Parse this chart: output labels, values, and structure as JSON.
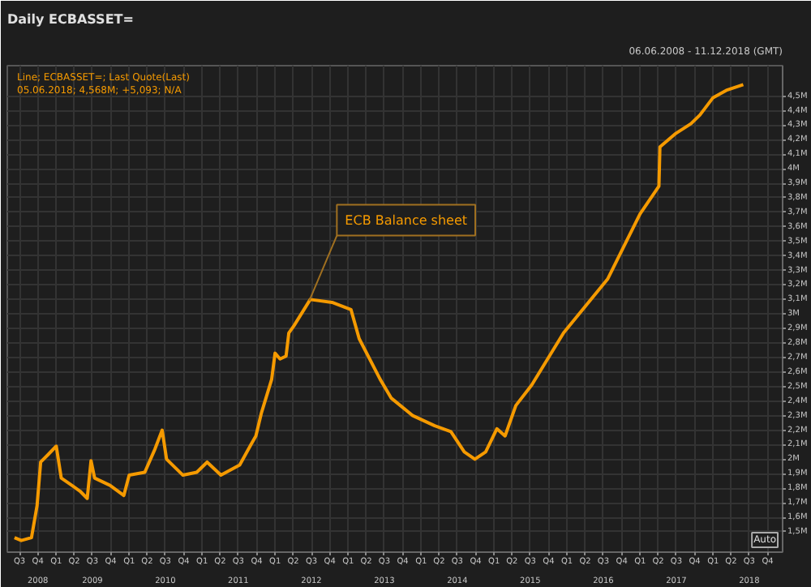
{
  "chart_data": {
    "type": "line",
    "title": "Daily ECBASSET=",
    "subtitle": "Line; ECBASSET=; Last Quote(Last)",
    "annotations": [
      "06.06.2008 - 11.12.2018 (GMT)",
      "05.06.2018; 4,568M; +5,093; N/A",
      {
        "text": "ECB Balance sheet",
        "x": "2012-06-20",
        "y": 3.09
      },
      "Auto"
    ],
    "x": [
      "2008-06-06",
      "2008-07-10",
      "2008-08-30",
      "2008-09-27",
      "2008-10-15",
      "2008-11-20",
      "2009-01-01",
      "2009-01-26",
      "2009-03-20",
      "2009-04-30",
      "2009-06-05",
      "2009-06-24",
      "2009-07-12",
      "2009-09-27",
      "2009-12-05",
      "2010-01-01",
      "2010-03-20",
      "2010-05-10",
      "2010-06-15",
      "2010-07-07",
      "2010-09-27",
      "2010-12-05",
      "2011-01-26",
      "2011-04-05",
      "2011-07-08",
      "2011-09-02",
      "2011-09-27",
      "2011-10-25",
      "2011-12-15",
      "2012-01-01",
      "2012-01-26",
      "2012-02-25",
      "2012-03-10",
      "2012-04-05",
      "2012-06-25",
      "2012-10-12",
      "2013-01-15",
      "2013-02-25",
      "2013-06-10",
      "2013-08-05",
      "2013-11-20",
      "2014-03-10",
      "2014-05-30",
      "2014-08-05",
      "2014-09-27",
      "2014-11-20",
      "2015-01-15",
      "2015-02-25",
      "2015-04-20",
      "2015-07-08",
      "2015-12-15",
      "2016-07-22",
      "2017-01-01",
      "2017-04-05",
      "2017-04-10",
      "2017-06-25",
      "2017-09-12",
      "2017-10-27",
      "2018-01-01",
      "2018-03-08",
      "2018-06-01"
    ],
    "series": [
      {
        "color": "#f59a00",
        "values": [
          1.46,
          1.44,
          1.46,
          1.68,
          1.98,
          2.03,
          2.09,
          1.87,
          1.82,
          1.78,
          1.73,
          1.99,
          1.87,
          1.82,
          1.75,
          1.89,
          1.91,
          2.07,
          2.2,
          2.0,
          1.89,
          1.91,
          1.98,
          1.89,
          1.96,
          2.1,
          2.16,
          2.32,
          2.55,
          2.73,
          2.69,
          2.71,
          2.87,
          2.92,
          3.1,
          3.08,
          3.03,
          2.83,
          2.55,
          2.42,
          2.3,
          2.23,
          2.19,
          2.05,
          2.0,
          2.05,
          2.21,
          2.16,
          2.37,
          2.51,
          2.87,
          3.24,
          3.69,
          3.88,
          4.15,
          4.24,
          4.31,
          4.37,
          4.49,
          4.54,
          4.58
        ]
      }
    ],
    "xlim": [
      "2008-05-01",
      "2018-12-15"
    ],
    "xticks": [
      {
        "value": "2008-07-01",
        "label": "Q3"
      },
      {
        "value": "2008-10-01",
        "label": "Q4"
      },
      {
        "value": "2009-01-01",
        "label": "Q1"
      },
      {
        "value": "2009-04-01",
        "label": "Q2"
      },
      {
        "value": "2009-07-01",
        "label": "Q3"
      },
      {
        "value": "2009-10-01",
        "label": "Q4"
      },
      {
        "value": "2010-01-01",
        "label": "Q1"
      },
      {
        "value": "2010-04-01",
        "label": "Q2"
      },
      {
        "value": "2010-07-01",
        "label": "Q3"
      },
      {
        "value": "2010-10-01",
        "label": "Q4"
      },
      {
        "value": "2011-01-01",
        "label": "Q1"
      },
      {
        "value": "2011-04-01",
        "label": "Q2"
      },
      {
        "value": "2011-07-01",
        "label": "Q3"
      },
      {
        "value": "2011-10-01",
        "label": "Q4"
      },
      {
        "value": "2012-01-01",
        "label": "Q1"
      },
      {
        "value": "2012-04-01",
        "label": "Q2"
      },
      {
        "value": "2012-07-01",
        "label": "Q3"
      },
      {
        "value": "2012-10-01",
        "label": "Q4"
      },
      {
        "value": "2013-01-01",
        "label": "Q1"
      },
      {
        "value": "2013-04-01",
        "label": "Q2"
      },
      {
        "value": "2013-07-01",
        "label": "Q3"
      },
      {
        "value": "2013-10-01",
        "label": "Q4"
      },
      {
        "value": "2014-01-01",
        "label": "Q1"
      },
      {
        "value": "2014-04-01",
        "label": "Q2"
      },
      {
        "value": "2014-07-01",
        "label": "Q3"
      },
      {
        "value": "2014-10-01",
        "label": "Q4"
      },
      {
        "value": "2015-01-01",
        "label": "Q1"
      },
      {
        "value": "2015-04-01",
        "label": "Q2"
      },
      {
        "value": "2015-07-01",
        "label": "Q3"
      },
      {
        "value": "2015-10-01",
        "label": "Q4"
      },
      {
        "value": "2016-01-01",
        "label": "Q1"
      },
      {
        "value": "2016-04-01",
        "label": "Q2"
      },
      {
        "value": "2016-07-01",
        "label": "Q3"
      },
      {
        "value": "2016-10-01",
        "label": "Q4"
      },
      {
        "value": "2017-01-01",
        "label": "Q1"
      },
      {
        "value": "2017-04-01",
        "label": "Q2"
      },
      {
        "value": "2017-07-01",
        "label": "Q3"
      },
      {
        "value": "2017-10-01",
        "label": "Q4"
      },
      {
        "value": "2018-01-01",
        "label": "Q1"
      },
      {
        "value": "2018-04-01",
        "label": "Q2"
      },
      {
        "value": "2018-07-01",
        "label": "Q3"
      },
      {
        "value": "2018-10-01",
        "label": "Q4"
      }
    ],
    "x2lim": [
      "2008-05-01",
      "2018-12-15"
    ],
    "x2ticks": [
      {
        "value": "2008-10-01",
        "label": "2008"
      },
      {
        "value": "2009-07-01",
        "label": "2009"
      },
      {
        "value": "2010-07-01",
        "label": "2010"
      },
      {
        "value": "2011-07-01",
        "label": "2011"
      },
      {
        "value": "2012-07-01",
        "label": "2012"
      },
      {
        "value": "2013-07-01",
        "label": "2013"
      },
      {
        "value": "2014-07-01",
        "label": "2014"
      },
      {
        "value": "2015-07-01",
        "label": "2015"
      },
      {
        "value": "2016-07-01",
        "label": "2016"
      },
      {
        "value": "2017-07-01",
        "label": "2017"
      },
      {
        "value": "2018-07-01",
        "label": "2018"
      }
    ],
    "ylim": [
      1.36,
      4.71
    ],
    "yticks": [
      {
        "value": 1.5,
        "label": "1,5M"
      },
      {
        "value": 1.6,
        "label": "1,6M"
      },
      {
        "value": 1.7,
        "label": "1,7M"
      },
      {
        "value": 1.8,
        "label": "1,8M"
      },
      {
        "value": 1.9,
        "label": "1,9M"
      },
      {
        "value": 2.0,
        "label": "2M"
      },
      {
        "value": 2.1,
        "label": "2,1M"
      },
      {
        "value": 2.2,
        "label": "2,2M"
      },
      {
        "value": 2.3,
        "label": "2,3M"
      },
      {
        "value": 2.4,
        "label": "2,4M"
      },
      {
        "value": 2.5,
        "label": "2,5M"
      },
      {
        "value": 2.6,
        "label": "2,6M"
      },
      {
        "value": 2.7,
        "label": "2,7M"
      },
      {
        "value": 2.8,
        "label": "2,8M"
      },
      {
        "value": 2.9,
        "label": "2,9M"
      },
      {
        "value": 3.0,
        "label": "3M"
      },
      {
        "value": 3.1,
        "label": "3,1M"
      },
      {
        "value": 3.2,
        "label": "3,2M"
      },
      {
        "value": 3.3,
        "label": "3,3M"
      },
      {
        "value": 3.4,
        "label": "3,4M"
      },
      {
        "value": 3.5,
        "label": "3,5M"
      },
      {
        "value": 3.6,
        "label": "3,6M"
      },
      {
        "value": 3.7,
        "label": "3,7M"
      },
      {
        "value": 3.8,
        "label": "3,8M"
      },
      {
        "value": 3.9,
        "label": "3,9M"
      },
      {
        "value": 4.0,
        "label": "4M"
      },
      {
        "value": 4.1,
        "label": "4,1M"
      },
      {
        "value": 4.2,
        "label": "4,2M"
      },
      {
        "value": 4.3,
        "label": "4,3M"
      },
      {
        "value": 4.4,
        "label": "4,4M"
      },
      {
        "value": 4.5,
        "label": "4,5M"
      }
    ],
    "grid": true,
    "line_style": "solid"
  }
}
